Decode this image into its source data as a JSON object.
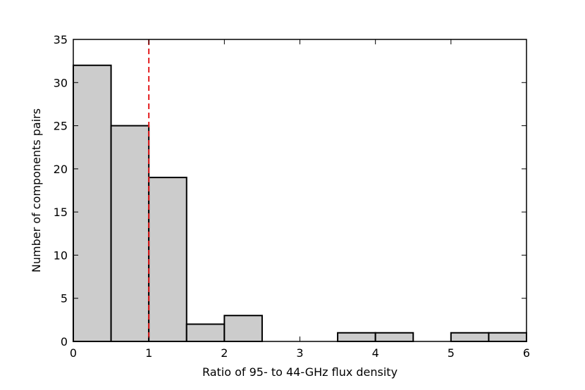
{
  "chart_data": {
    "type": "bar",
    "subtype": "histogram",
    "title": "",
    "xlabel": "Ratio of 95- to 44-GHz flux density",
    "ylabel": "Number of components pairs",
    "xlim": [
      0,
      6
    ],
    "ylim": [
      0,
      35
    ],
    "xticks": [
      0,
      1,
      2,
      3,
      4,
      5,
      6
    ],
    "yticks": [
      0,
      5,
      10,
      15,
      20,
      25,
      30,
      35
    ],
    "grid": false,
    "bins": [
      {
        "x0": 0.0,
        "x1": 0.5,
        "count": 32
      },
      {
        "x0": 0.5,
        "x1": 1.0,
        "count": 25
      },
      {
        "x0": 1.0,
        "x1": 1.5,
        "count": 19
      },
      {
        "x0": 1.5,
        "x1": 2.0,
        "count": 2
      },
      {
        "x0": 2.0,
        "x1": 2.5,
        "count": 3
      },
      {
        "x0": 2.5,
        "x1": 3.0,
        "count": 0
      },
      {
        "x0": 3.0,
        "x1": 3.5,
        "count": 0
      },
      {
        "x0": 3.5,
        "x1": 4.0,
        "count": 1
      },
      {
        "x0": 4.0,
        "x1": 4.5,
        "count": 1
      },
      {
        "x0": 4.5,
        "x1": 5.0,
        "count": 0
      },
      {
        "x0": 5.0,
        "x1": 5.5,
        "count": 1
      },
      {
        "x0": 5.5,
        "x1": 6.0,
        "count": 1
      }
    ],
    "reference_line": {
      "x": 1,
      "style": "dashed",
      "color": "#e41a1c"
    },
    "colors": {
      "bar_fill": "#cccccc",
      "bar_edge": "#000000"
    }
  }
}
